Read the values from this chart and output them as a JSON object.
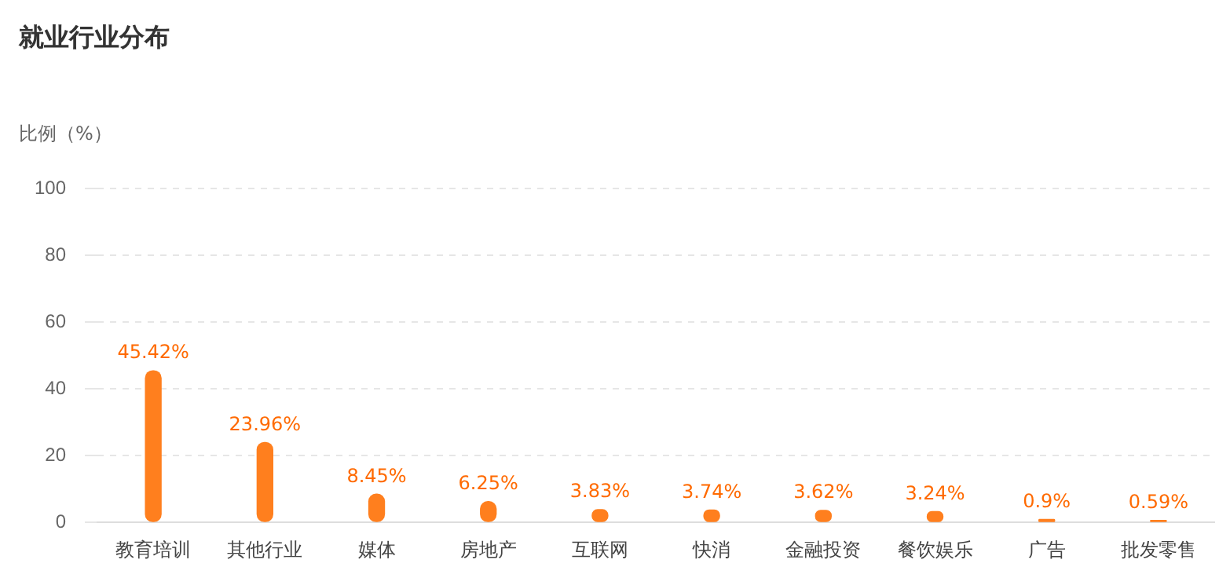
{
  "chart_data": {
    "type": "bar",
    "title": "就业行业分布",
    "ylabel": "比例（%）",
    "categories": [
      "教育培训",
      "其他行业",
      "媒体",
      "房地产",
      "互联网",
      "快消",
      "金融投资",
      "餐饮娱乐",
      "广告",
      "批发零售"
    ],
    "values": [
      45.42,
      23.96,
      8.45,
      6.25,
      3.83,
      3.74,
      3.62,
      3.24,
      0.9,
      0.59
    ],
    "value_labels": [
      "45.42%",
      "23.96%",
      "8.45%",
      "6.25%",
      "3.83%",
      "3.74%",
      "3.62%",
      "3.24%",
      "0.9%",
      "0.59%"
    ],
    "color": "#ff7f1e",
    "ylim": [
      0,
      100
    ],
    "yticks": [
      0,
      20,
      40,
      60,
      80,
      100
    ],
    "grid": "y"
  }
}
